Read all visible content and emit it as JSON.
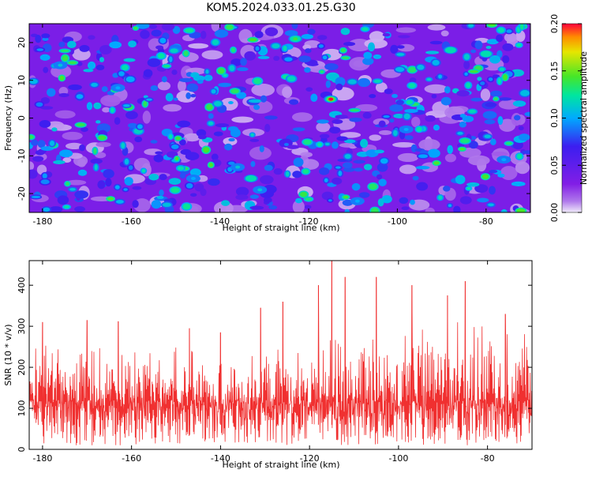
{
  "title": "KOM5.2024.033.01.25.G30",
  "chart_data": [
    {
      "type": "heatmap",
      "xlabel": "Height of straight line (km)",
      "ylabel": "Frequency (Hz)",
      "xlim": [
        -183,
        -70
      ],
      "ylim": [
        -25,
        25
      ],
      "x_ticks": [
        -180,
        -160,
        -140,
        -120,
        -100,
        -80
      ],
      "y_ticks": [
        -20,
        -10,
        0,
        10,
        20
      ],
      "colorbar": {
        "label": "Normalized spectral amplitude",
        "range": [
          0.0,
          0.2
        ],
        "ticks": [
          "0.00",
          "0.05",
          "0.10",
          "0.15",
          "0.20"
        ]
      },
      "grid": false,
      "hotspots": [
        {
          "x": -115,
          "y": 5,
          "value": 0.2
        },
        {
          "x": -123,
          "y": 21,
          "value": 0.14
        },
        {
          "x": -133,
          "y": -16,
          "value": 0.12
        },
        {
          "x": -136,
          "y": -13,
          "value": 0.11
        },
        {
          "x": -131,
          "y": -19,
          "value": 0.11
        },
        {
          "x": -176,
          "y": 14,
          "value": 0.11
        },
        {
          "x": -163,
          "y": 8,
          "value": 0.1
        },
        {
          "x": -88,
          "y": 18,
          "value": 0.12
        },
        {
          "x": -80,
          "y": 17,
          "value": 0.12
        },
        {
          "x": -98,
          "y": -3,
          "value": 0.1
        },
        {
          "x": -146,
          "y": -16,
          "value": 0.1
        },
        {
          "x": -109,
          "y": -22,
          "value": 0.1
        },
        {
          "x": -76,
          "y": -11,
          "value": 0.1
        },
        {
          "x": -150,
          "y": 5,
          "value": 0.09
        },
        {
          "x": -125,
          "y": -7,
          "value": 0.09
        }
      ]
    },
    {
      "type": "line",
      "xlabel": "Height of straight line (km)",
      "ylabel": "SNR (10 * v/v)",
      "xlim": [
        -183,
        -70
      ],
      "ylim": [
        0,
        460
      ],
      "x_ticks": [
        -180,
        -160,
        -140,
        -120,
        -100,
        -80
      ],
      "y_ticks": [
        0,
        100,
        200,
        300,
        400
      ],
      "color": "#f03030",
      "grid": false,
      "peaks": [
        {
          "x": -180,
          "y": 310
        },
        {
          "x": -170,
          "y": 315
        },
        {
          "x": -163,
          "y": 312
        },
        {
          "x": -147,
          "y": 295
        },
        {
          "x": -140,
          "y": 285
        },
        {
          "x": -131,
          "y": 345
        },
        {
          "x": -126,
          "y": 360
        },
        {
          "x": -118,
          "y": 400
        },
        {
          "x": -115,
          "y": 460
        },
        {
          "x": -112,
          "y": 420
        },
        {
          "x": -105,
          "y": 420
        },
        {
          "x": -97,
          "y": 400
        },
        {
          "x": -89,
          "y": 375
        },
        {
          "x": -85,
          "y": 410
        },
        {
          "x": -76,
          "y": 330
        }
      ]
    }
  ]
}
